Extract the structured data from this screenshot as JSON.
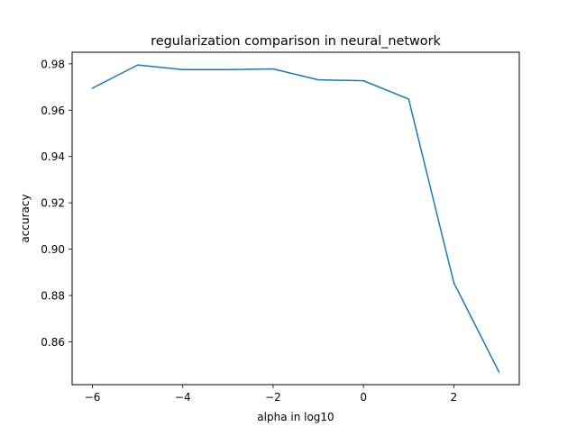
{
  "chart_data": {
    "type": "line",
    "title": "regularization comparison in neural_network",
    "xlabel": "alpha in log10",
    "ylabel": "accuracy",
    "xlim": [
      -6.45,
      3.45
    ],
    "ylim": [
      0.8415,
      0.985
    ],
    "x_ticks": [
      -6,
      -4,
      -2,
      0,
      2
    ],
    "x_tick_labels": [
      "−6",
      "−4",
      "−2",
      "0",
      "2"
    ],
    "y_ticks": [
      0.86,
      0.88,
      0.9,
      0.92,
      0.94,
      0.96,
      0.98
    ],
    "y_tick_labels": [
      "0.86",
      "0.88",
      "0.90",
      "0.92",
      "0.94",
      "0.96",
      "0.98"
    ],
    "grid": false,
    "legend": "none",
    "series": [
      {
        "color": "#1f77b4",
        "x": [
          -6,
          -5,
          -4,
          -3,
          -2,
          -1,
          0,
          1,
          2,
          3
        ],
        "y": [
          0.9695,
          0.9795,
          0.9775,
          0.9775,
          0.9778,
          0.9731,
          0.9727,
          0.9648,
          0.8855,
          0.847
        ]
      }
    ]
  }
}
